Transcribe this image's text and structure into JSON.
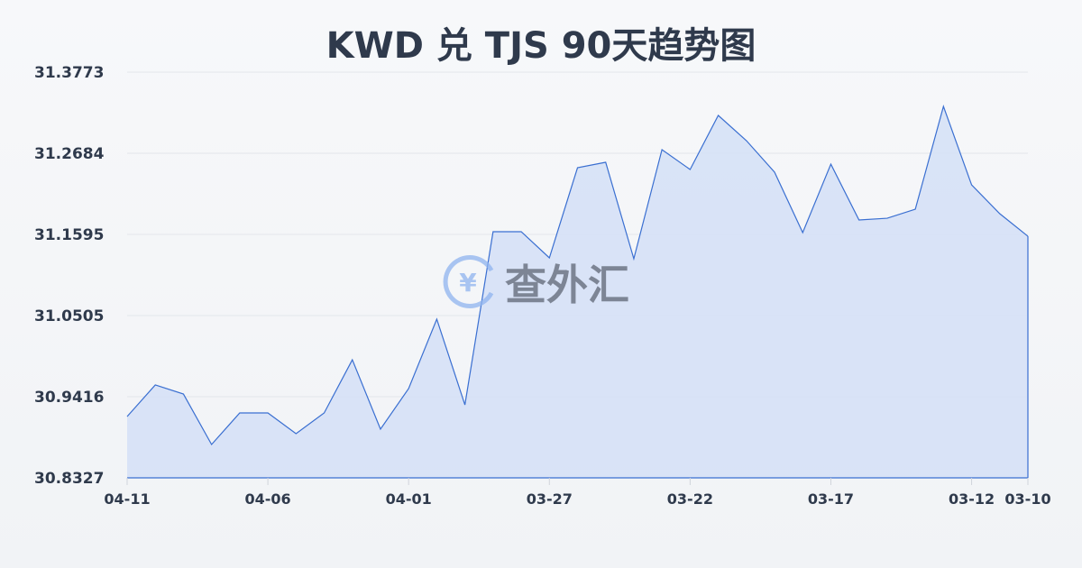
{
  "chart_data": {
    "type": "area",
    "title": "KWD 兑 TJS 90天趋势图",
    "xlabel": "",
    "ylabel": "",
    "ylim": [
      30.8327,
      31.3773
    ],
    "yticks": [
      "30.8327",
      "30.9416",
      "31.0505",
      "31.1595",
      "31.2684",
      "31.3773"
    ],
    "xticks": [
      "04-11",
      "04-06",
      "04-01",
      "03-27",
      "03-22",
      "03-17",
      "03-12",
      "03-10"
    ],
    "xtick_indices": [
      0,
      5,
      10,
      15,
      20,
      25,
      30,
      32
    ],
    "grid": true,
    "x": [
      "04-11",
      "04-10",
      "04-09",
      "04-08",
      "04-07",
      "04-06",
      "04-05",
      "04-04",
      "04-03",
      "04-02",
      "04-01",
      "03-31",
      "03-30",
      "03-29",
      "03-28",
      "03-27",
      "03-26",
      "03-25",
      "03-24",
      "03-23",
      "03-22",
      "03-21",
      "03-20",
      "03-19",
      "03-18",
      "03-17",
      "03-16",
      "03-15",
      "03-14",
      "03-13",
      "03-12",
      "03-11",
      "03-10"
    ],
    "values": [
      30.915,
      30.9574,
      30.9452,
      30.8775,
      30.9198,
      30.9198,
      30.892,
      30.9198,
      30.9912,
      30.8981,
      30.9525,
      31.0457,
      30.9307,
      31.1631,
      31.1631,
      31.128,
      31.249,
      31.2563,
      31.1268,
      31.2732,
      31.2466,
      31.3192,
      31.2853,
      31.243,
      31.1619,
      31.2538,
      31.1788,
      31.1812,
      31.1933,
      31.3313,
      31.226,
      31.1873,
      31.157
    ],
    "line_color": "#3a6fd1",
    "fill_color": "#d6e1f6"
  },
  "watermark": {
    "text": "查外汇",
    "icon": "yen-exchange-icon"
  }
}
